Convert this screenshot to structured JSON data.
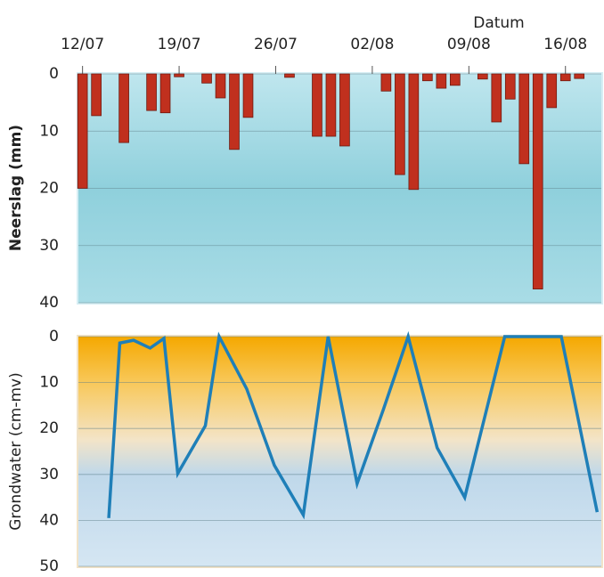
{
  "chart_data": [
    {
      "type": "bar",
      "xlabel": "Datum",
      "ylabel": "Neerslag (mm)",
      "x": [
        0,
        1,
        3,
        5,
        6,
        7,
        9,
        10,
        11,
        12,
        15,
        17,
        18,
        19,
        22,
        23,
        24,
        25,
        26,
        27,
        29,
        30,
        31,
        32,
        33,
        34,
        35,
        36
      ],
      "values": [
        20,
        7.3,
        12,
        6.4,
        6.8,
        0.5,
        1.6,
        4.2,
        13.2,
        7.6,
        0.6,
        10.9,
        10.9,
        12.6,
        3,
        17.6,
        20.2,
        1.2,
        2.5,
        2,
        0.9,
        8.4,
        4.4,
        15.7,
        37.6,
        5.9,
        1.2,
        0.8
      ],
      "color": "#c0301e",
      "xlim": [
        -0.3,
        37.6
      ],
      "xticks": [
        {
          "value": 0,
          "label": "12/07"
        },
        {
          "value": 7,
          "label": "19/07"
        },
        {
          "value": 14,
          "label": "26/07"
        },
        {
          "value": 21,
          "label": "02/08"
        },
        {
          "value": 28,
          "label": "09/08"
        },
        {
          "value": 35,
          "label": "16/08"
        }
      ],
      "ylim": [
        0,
        40
      ],
      "yticks": [
        0,
        10,
        20,
        30,
        40
      ],
      "y_inverted": true,
      "grid": true
    },
    {
      "type": "line",
      "ylabel": "Grondwater (cm-mv)",
      "x": [
        1.9,
        2.7,
        3.7,
        4.9,
        5.9,
        6.9,
        8.9,
        9.9,
        11.9,
        13.9,
        16,
        17.8,
        19.9,
        21.8,
        23.6,
        25.7,
        27.7,
        30.6,
        34.7,
        37.3
      ],
      "values": [
        39.5,
        1.4,
        0.8,
        2.5,
        0.4,
        29.8,
        19.4,
        0,
        11.4,
        28,
        38.8,
        0,
        32,
        15.9,
        0,
        24.2,
        35,
        0,
        0,
        38.2
      ],
      "color": "#1f7fb8",
      "xlim": [
        -0.3,
        37.6
      ],
      "ylim": [
        0,
        50
      ],
      "yticks": [
        0,
        10,
        20,
        30,
        40,
        50
      ],
      "y_inverted": true,
      "grid": true
    }
  ]
}
